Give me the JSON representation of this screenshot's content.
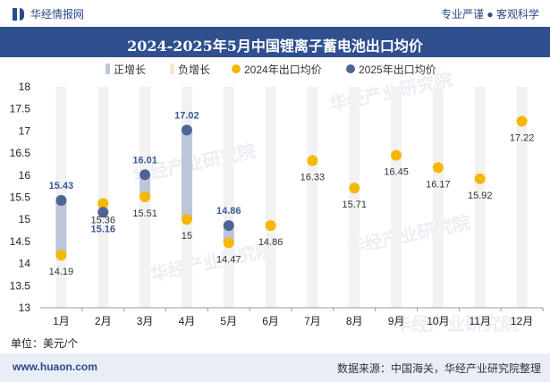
{
  "header": {
    "brand": "华经情报网",
    "tagline": "专业严谨 ● 客观科学"
  },
  "footer": {
    "unit": "单位：美元/个",
    "site": "www.huaon.com",
    "source": "数据来源：中国海关，华经产业研究院整理"
  },
  "chart_data": {
    "type": "scatter",
    "title": "2024-2025年5月中国锂离子蓄电池出口均价",
    "xlabel": "",
    "ylabel": "",
    "categories": [
      "1月",
      "2月",
      "3月",
      "4月",
      "5月",
      "6月",
      "7月",
      "8月",
      "9月",
      "10月",
      "11月",
      "12月"
    ],
    "ylim": [
      13,
      18
    ],
    "yticks": [
      13,
      13.5,
      14,
      14.5,
      15,
      15.5,
      16,
      16.5,
      17,
      17.5,
      18
    ],
    "ytick_labels": [
      "13",
      "13.5",
      "14",
      "14.5",
      "15",
      "15.5",
      "16",
      "16.5",
      "17",
      "17.5",
      "18"
    ],
    "legend": {
      "position": "top",
      "entries": [
        "正增长",
        "负增长",
        "2024年出口均价",
        "2025年出口均价"
      ]
    },
    "series": [
      {
        "name": "2024年出口均价",
        "color": "#f5b800",
        "values": [
          14.19,
          15.36,
          15.51,
          15,
          14.47,
          14.86,
          16.33,
          15.71,
          16.45,
          16.17,
          15.92,
          17.22
        ],
        "labels": [
          "14.19",
          "15.36",
          "15.51",
          "15",
          "14.47",
          "14.86",
          "16.33",
          "15.71",
          "16.45",
          "16.17",
          "15.92",
          "17.22"
        ]
      },
      {
        "name": "2025年出口均价",
        "color": "#4e6493",
        "values": [
          15.43,
          15.16,
          16.01,
          17.02,
          14.86
        ],
        "labels": [
          "15.43",
          "15.16",
          "16.01",
          "17.02",
          "14.86"
        ]
      }
    ],
    "colors": {
      "positive": "#bcc6da",
      "negative": "#f6e7c8",
      "background_band": "#f2f2f2",
      "label_2025": "#3b5896"
    },
    "watermark": "华经产业研究院",
    "watermark_url": "www.huaon.com"
  }
}
